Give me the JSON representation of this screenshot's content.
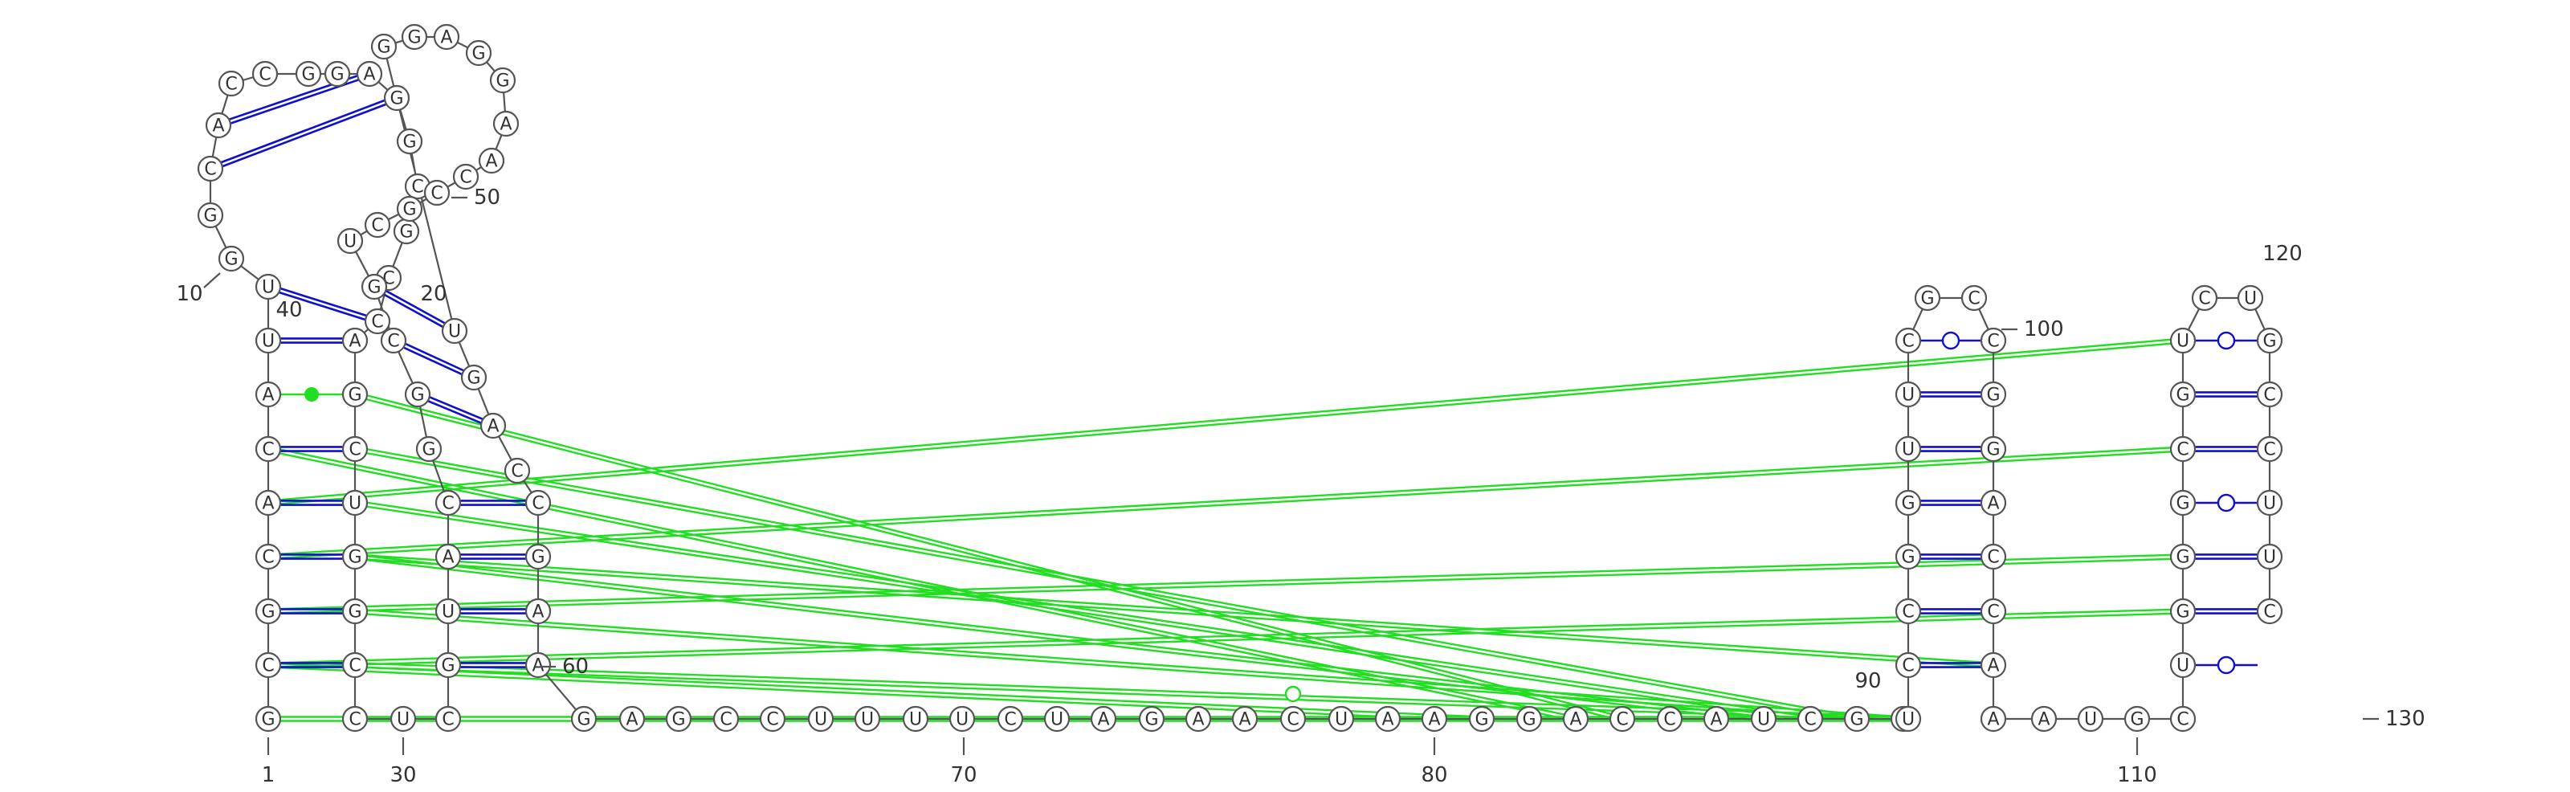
{
  "sequence": [
    "G",
    "C",
    "G",
    "C",
    "A",
    "C",
    "A",
    "U",
    "U",
    "G",
    "G",
    "C",
    "A",
    "C",
    "C",
    "G",
    "G",
    "A",
    "G",
    "G",
    "C",
    "G",
    "C",
    "C",
    "A",
    "G",
    "C",
    "U",
    "G",
    "G",
    "C",
    "C",
    "U",
    "C",
    "G",
    "U",
    "A",
    "C",
    "G",
    "G",
    "C",
    "G",
    "U",
    "C",
    "G",
    "C",
    "C",
    "A",
    "A",
    "G",
    "G",
    "A",
    "G",
    "G",
    "U",
    "G",
    "A",
    "C",
    "C",
    "G",
    "A",
    "A",
    "G",
    "A",
    "G",
    "C",
    "C",
    "U",
    "U",
    "U",
    "U",
    "C",
    "U",
    "A",
    "G",
    "A",
    "A",
    "C",
    "U",
    "A",
    "A",
    "G",
    "G",
    "A",
    "C",
    "C",
    "A",
    "U",
    "C",
    "G",
    "A",
    "U",
    "C",
    "C",
    "G",
    "G",
    "U",
    "U",
    "C",
    "G",
    "C",
    "C",
    "G",
    "G",
    "A",
    "C",
    "C",
    "A",
    "A",
    "A",
    "U",
    "G",
    "C",
    "U",
    "G",
    "G",
    "G",
    "C",
    "G",
    "U",
    "C",
    "U",
    "G",
    "C",
    "C",
    "U",
    "U",
    "C"
  ],
  "position_labels": [
    {
      "pos": 1,
      "text": "1"
    },
    {
      "pos": 10,
      "text": "10"
    },
    {
      "pos": 20,
      "text": "20"
    },
    {
      "pos": 30,
      "text": "30"
    },
    {
      "pos": 40,
      "text": "40"
    },
    {
      "pos": 50,
      "text": "50"
    },
    {
      "pos": 60,
      "text": "60"
    },
    {
      "pos": 70,
      "text": "70"
    },
    {
      "pos": 80,
      "text": "80"
    },
    {
      "pos": 90,
      "text": "90"
    },
    {
      "pos": 100,
      "text": "100"
    },
    {
      "pos": 110,
      "text": "110"
    },
    {
      "pos": 120,
      "text": "120"
    },
    {
      "pos": 130,
      "text": "130"
    }
  ],
  "base_pairs": [
    {
      "i": 2,
      "j": 34,
      "kind": "watson-crick"
    },
    {
      "i": 3,
      "j": 33,
      "kind": "watson-crick"
    },
    {
      "i": 4,
      "j": 32,
      "kind": "watson-crick"
    },
    {
      "i": 5,
      "j": 31,
      "kind": "watson-crick"
    },
    {
      "i": 6,
      "j": 30,
      "kind": "watson-crick"
    },
    {
      "i": 7,
      "j": 29,
      "kind": "watson-crick"
    },
    {
      "i": 8,
      "j": 28,
      "kind": "non-canonical"
    },
    {
      "i": 9,
      "j": 27,
      "kind": "watson-crick"
    },
    {
      "i": 10,
      "j": 26,
      "kind": "watson-crick"
    },
    {
      "i": 11,
      "j": 25,
      "kind": "watson-crick"
    },
    {
      "i": 14,
      "j": 41,
      "kind": "watson-crick"
    },
    {
      "i": 15,
      "j": 42,
      "kind": "watson-crick"
    },
    {
      "i": 21,
      "j": 54,
      "kind": "watson-crick"
    },
    {
      "i": 22,
      "j": 53,
      "kind": "watson-crick"
    },
    {
      "i": 23,
      "j": 52,
      "kind": "watson-crick"
    },
    {
      "i": 24,
      "j": 51,
      "kind": "watson-crick"
    },
    {
      "i": 35,
      "j": 61,
      "kind": "watson-crick"
    },
    {
      "i": 36,
      "j": 60,
      "kind": "watson-crick"
    },
    {
      "i": 37,
      "j": 59,
      "kind": "watson-crick"
    },
    {
      "i": 38,
      "j": 58,
      "kind": "watson-crick"
    },
    {
      "i": 39,
      "j": 57,
      "kind": "watson-crick"
    },
    {
      "i": 94,
      "j": 106,
      "kind": "watson-crick"
    },
    {
      "i": 95,
      "j": 105,
      "kind": "watson-crick"
    },
    {
      "i": 96,
      "j": 104,
      "kind": "watson-crick"
    },
    {
      "i": 97,
      "j": 103,
      "kind": "watson-crick"
    },
    {
      "i": 98,
      "j": 102,
      "kind": "watson-crick"
    },
    {
      "i": 99,
      "j": 101,
      "kind": "watson-crick"
    },
    {
      "i": 100,
      "j": 100,
      "kind": "gu"
    },
    {
      "i": 114,
      "j": 127,
      "kind": "gu"
    },
    {
      "i": 115,
      "j": 126,
      "kind": "watson-crick"
    },
    {
      "i": 116,
      "j": 125,
      "kind": "watson-crick"
    },
    {
      "i": 117,
      "j": 124,
      "kind": "watson-crick"
    },
    {
      "i": 118,
      "j": 123,
      "kind": "watson-crick"
    },
    {
      "i": 119,
      "j": 122,
      "kind": "gu"
    },
    {
      "i": 120,
      "j": 121,
      "kind": "watson-crick"
    }
  ],
  "colors": {
    "pair_line": "#1010cc",
    "tertiary_line": "#22dd22",
    "circle_stroke": "#555555",
    "text": "#333333"
  }
}
